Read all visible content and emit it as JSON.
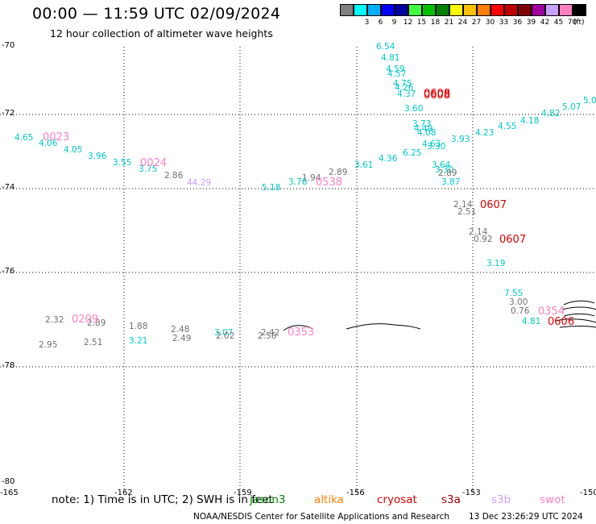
{
  "header": {
    "title": "00:00 — 11:59 UTC 02/09/2024",
    "subtitle": "12 hour collection of altimeter wave heights"
  },
  "legend": {
    "bins": [
      {
        "label": "",
        "color": "#808080"
      },
      {
        "label": "3",
        "color": "#00ffff"
      },
      {
        "label": "6",
        "color": "#00b0ff"
      },
      {
        "label": "9",
        "color": "#0000ff"
      },
      {
        "label": "12",
        "color": "#0000a0"
      },
      {
        "label": "15",
        "color": "#40ff40"
      },
      {
        "label": "18",
        "color": "#00c000"
      },
      {
        "label": "21",
        "color": "#008000"
      },
      {
        "label": "24",
        "color": "#ffff00"
      },
      {
        "label": "27",
        "color": "#ffc000"
      },
      {
        "label": "30",
        "color": "#ff8000"
      },
      {
        "label": "33",
        "color": "#ff0000"
      },
      {
        "label": "36",
        "color": "#c00000"
      },
      {
        "label": "39",
        "color": "#800000"
      },
      {
        "label": "42",
        "color": "#a000a0"
      },
      {
        "label": "45",
        "color": "#c8a0ff"
      },
      {
        "label": "70",
        "color": "#ff80c0"
      },
      {
        "label": "",
        "color": "#000000"
      }
    ],
    "unit": "(ft)"
  },
  "map": {
    "lat_labels": [
      "-70",
      "-72",
      "-74",
      "-76",
      "-78",
      "-80"
    ],
    "lon_labels": [
      "-165",
      "-162",
      "-159",
      "-156",
      "-153",
      "-150"
    ],
    "observations": [
      {
        "text": "6.54",
        "color": "#00c8c8"
      },
      {
        "text": "4.81",
        "color": "#00c8c8"
      },
      {
        "text": "4.59",
        "color": "#00c8c8"
      },
      {
        "text": "4.57",
        "color": "#00c8c8"
      },
      {
        "text": "4.75",
        "color": "#00c8c8"
      },
      {
        "text": "4.26",
        "color": "#00c8c8"
      },
      {
        "text": "4.37",
        "color": "#00c8c8"
      },
      {
        "text": "3.60",
        "color": "#00c8c8"
      },
      {
        "text": "3.73",
        "color": "#00c8c8"
      },
      {
        "text": "4.49",
        "color": "#00c8c8"
      },
      {
        "text": "4.08",
        "color": "#00c8c8"
      },
      {
        "text": "4.63",
        "color": "#00c8c8"
      },
      {
        "text": "3.30",
        "color": "#00c8c8"
      },
      {
        "text": "6.25",
        "color": "#00c8c8"
      },
      {
        "text": "3.93",
        "color": "#00c8c8"
      },
      {
        "text": "4.23",
        "color": "#00c8c8"
      },
      {
        "text": "4.55",
        "color": "#00c8c8"
      },
      {
        "text": "4.18",
        "color": "#00c8c8"
      },
      {
        "text": "4.82",
        "color": "#00c8c8"
      },
      {
        "text": "5.07",
        "color": "#00c8c8"
      },
      {
        "text": "5.0",
        "color": "#00c8c8"
      },
      {
        "text": "4.36",
        "color": "#00c8c8"
      },
      {
        "text": "3.61",
        "color": "#00c8c8"
      },
      {
        "text": "3.64",
        "color": "#00c8c8"
      },
      {
        "text": "3.30",
        "color": "#00c8c8"
      },
      {
        "text": "2.89",
        "color": "#707070"
      },
      {
        "text": "3.87",
        "color": "#00c8c8"
      },
      {
        "text": "2.89",
        "color": "#707070"
      },
      {
        "text": "1.94",
        "color": "#707070"
      },
      {
        "text": "3.76",
        "color": "#00c8c8"
      },
      {
        "text": "5.18",
        "color": "#00c8c8"
      },
      {
        "text": "44.29",
        "color": "#c8a0ff"
      },
      {
        "text": "2.86",
        "color": "#707070"
      },
      {
        "text": "3.75",
        "color": "#00c8c8"
      },
      {
        "text": "3.55",
        "color": "#00c8c8"
      },
      {
        "text": "3.96",
        "color": "#00c8c8"
      },
      {
        "text": "4.05",
        "color": "#00c8c8"
      },
      {
        "text": "4.06",
        "color": "#00c8c8"
      },
      {
        "text": "4.65",
        "color": "#00c8c8"
      },
      {
        "text": "2.14",
        "color": "#707070"
      },
      {
        "text": "2.51",
        "color": "#707070"
      },
      {
        "text": "2.14",
        "color": "#707070"
      },
      {
        "text": "0.92",
        "color": "#707070"
      },
      {
        "text": "3.19",
        "color": "#00c8c8"
      },
      {
        "text": "7.55",
        "color": "#00c8c8"
      },
      {
        "text": "3.00",
        "color": "#707070"
      },
      {
        "text": "0.76",
        "color": "#707070"
      },
      {
        "text": "4.81",
        "color": "#00c8c8"
      },
      {
        "text": "2.32",
        "color": "#707070"
      },
      {
        "text": "2.89",
        "color": "#707070"
      },
      {
        "text": "1.88",
        "color": "#707070"
      },
      {
        "text": "2.48",
        "color": "#707070"
      },
      {
        "text": "3.07",
        "color": "#00c8c8"
      },
      {
        "text": "2.42",
        "color": "#707070"
      },
      {
        "text": "2.95",
        "color": "#707070"
      },
      {
        "text": "2.51",
        "color": "#707070"
      },
      {
        "text": "3.21",
        "color": "#00c8c8"
      },
      {
        "text": "2.49",
        "color": "#707070"
      },
      {
        "text": "2.02",
        "color": "#707070"
      },
      {
        "text": "2.56",
        "color": "#707070"
      }
    ],
    "pass_times": [
      {
        "text": "0608",
        "color": "#e00000"
      },
      {
        "text": "0608",
        "color": "#e00000"
      },
      {
        "text": "0023",
        "color": "#ff80c0"
      },
      {
        "text": "0024",
        "color": "#ff80c0"
      },
      {
        "text": "0538",
        "color": "#ff80c0"
      },
      {
        "text": "0607",
        "color": "#e00000"
      },
      {
        "text": "0607",
        "color": "#e00000"
      },
      {
        "text": "0354",
        "color": "#ff80c0"
      },
      {
        "text": "0606",
        "color": "#e00000"
      },
      {
        "text": "0209",
        "color": "#ff80c0"
      },
      {
        "text": "0353",
        "color": "#ff80c0"
      }
    ]
  },
  "footer": {
    "note": "note: 1) Time is in UTC; 2) SWH is in feet",
    "satellites": [
      {
        "name": "jason3",
        "color": "#008000"
      },
      {
        "name": "altika",
        "color": "#ff8000"
      },
      {
        "name": "cryosat",
        "color": "#e00000"
      },
      {
        "name": "s3a",
        "color": "#a00000"
      },
      {
        "name": "s3b",
        "color": "#c8a0ff"
      },
      {
        "name": "swot",
        "color": "#ff80c0"
      }
    ],
    "credit": "NOAA/NESDIS Center for Satellite Applications and Research",
    "timestamp": "13 Dec 23:26:29 UTC 2024"
  }
}
